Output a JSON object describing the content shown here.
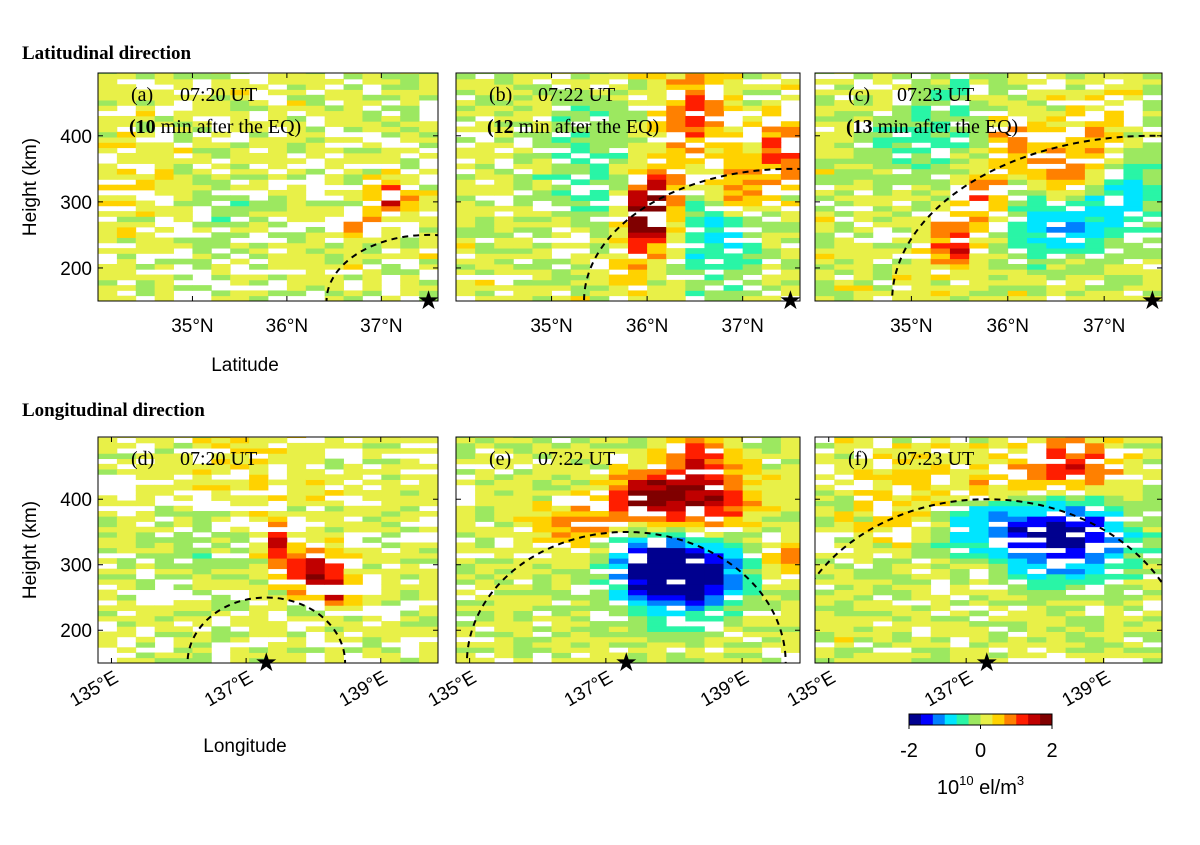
{
  "figure": {
    "section_titles": [
      "Latitudinal direction",
      "Longitudinal direction"
    ],
    "colors": {
      "frame": "#000000",
      "dash": "#000000",
      "missing": "#ffffff",
      "colormap": [
        "#00008f",
        "#0000ff",
        "#0080ff",
        "#00e5ff",
        "#29f5a6",
        "#9ce860",
        "#e8f048",
        "#ffd200",
        "#ff8000",
        "#ff1e00",
        "#c00000",
        "#800000"
      ]
    },
    "colorbar": {
      "vmin": -2,
      "vmax": 2,
      "ticks": [
        "-2",
        "0",
        "2"
      ],
      "label_base": "10",
      "label_exp": "10",
      "label_rest": " el/m",
      "label_unit_exp": "3"
    }
  },
  "chart_data": [
    {
      "id": "a",
      "type": "heatmap",
      "panel_label": "(a)",
      "time": "07:20 UT",
      "note_bold": "10",
      "note_pre": "(",
      "note_post": " min after the EQ)",
      "xlabel": "Latitude",
      "ylabel": "Height (km)",
      "xlim": [
        34.0,
        37.6
      ],
      "ylim": [
        150,
        495
      ],
      "xticks": [
        35,
        36,
        37
      ],
      "xtick_labels": [
        "35°N",
        "36°N",
        "37°N"
      ],
      "yticks": [
        200,
        300,
        400
      ],
      "ytick_labels": [
        "200",
        "300",
        "400"
      ],
      "x_rotate": false,
      "epicenter_x": 37.5,
      "wave_front": {
        "center_x": 37.5,
        "radius_km": 100,
        "x_per_km": 0.0108
      },
      "blobs": [
        {
          "x": 37.1,
          "y": 305,
          "sx": 0.13,
          "sy": 18,
          "a": 1.3
        },
        {
          "x": 36.85,
          "y": 262,
          "sx": 0.12,
          "sy": 12,
          "a": 1.0
        },
        {
          "x": 35.3,
          "y": 300,
          "sx": 0.3,
          "sy": 45,
          "a": -0.35
        },
        {
          "x": 34.5,
          "y": 330,
          "sx": 0.45,
          "sy": 45,
          "a": 0.25
        }
      ],
      "base": 0.1,
      "noise": 0.12,
      "holes": 0.28,
      "seed": 11
    },
    {
      "id": "b",
      "type": "heatmap",
      "panel_label": "(b)",
      "time": "07:22 UT",
      "note_bold": "12",
      "note_pre": "(",
      "note_post": " min after the EQ)",
      "xlabel": "",
      "ylabel": "",
      "xlim": [
        34.0,
        37.6
      ],
      "ylim": [
        150,
        495
      ],
      "xticks": [
        35,
        36,
        37
      ],
      "xtick_labels": [
        "35°N",
        "36°N",
        "37°N"
      ],
      "yticks": [
        200,
        300,
        400
      ],
      "ytick_labels": [
        "",
        "",
        ""
      ],
      "x_rotate": false,
      "epicenter_x": 37.5,
      "wave_front": {
        "center_x": 37.5,
        "radius_km": 200,
        "x_per_km": 0.0108
      },
      "blobs": [
        {
          "x": 35.95,
          "y": 270,
          "sx": 0.14,
          "sy": 42,
          "a": 1.9
        },
        {
          "x": 36.15,
          "y": 300,
          "sx": 0.13,
          "sy": 30,
          "a": 1.5
        },
        {
          "x": 36.5,
          "y": 430,
          "sx": 0.25,
          "sy": 55,
          "a": 1.0
        },
        {
          "x": 36.95,
          "y": 320,
          "sx": 0.18,
          "sy": 30,
          "a": 1.1
        },
        {
          "x": 37.4,
          "y": 380,
          "sx": 0.2,
          "sy": 40,
          "a": 0.9
        },
        {
          "x": 36.75,
          "y": 250,
          "sx": 0.3,
          "sy": 60,
          "a": -0.9
        },
        {
          "x": 35.3,
          "y": 360,
          "sx": 0.4,
          "sy": 70,
          "a": -0.5
        }
      ],
      "base": 0.1,
      "noise": 0.13,
      "holes": 0.2,
      "seed": 23
    },
    {
      "id": "c",
      "type": "heatmap",
      "panel_label": "(c)",
      "time": "07:23 UT",
      "note_bold": "13",
      "note_pre": "(",
      "note_post": " min after the EQ)",
      "xlabel": "",
      "ylabel": "",
      "xlim": [
        34.0,
        37.6
      ],
      "ylim": [
        150,
        495
      ],
      "xticks": [
        35,
        36,
        37
      ],
      "xtick_labels": [
        "35°N",
        "36°N",
        "37°N"
      ],
      "yticks": [
        200,
        300,
        400
      ],
      "ytick_labels": [
        "",
        "",
        ""
      ],
      "x_rotate": false,
      "epicenter_x": 37.5,
      "wave_front": {
        "center_x": 37.5,
        "radius_km": 250,
        "x_per_km": 0.0108
      },
      "blobs": [
        {
          "x": 35.45,
          "y": 240,
          "sx": 0.15,
          "sy": 30,
          "a": 1.4
        },
        {
          "x": 35.75,
          "y": 305,
          "sx": 0.15,
          "sy": 30,
          "a": 1.2
        },
        {
          "x": 36.05,
          "y": 380,
          "sx": 0.2,
          "sy": 30,
          "a": 0.9
        },
        {
          "x": 36.6,
          "y": 335,
          "sx": 0.2,
          "sy": 30,
          "a": 1.0
        },
        {
          "x": 37.0,
          "y": 390,
          "sx": 0.25,
          "sy": 40,
          "a": 0.8
        },
        {
          "x": 36.5,
          "y": 270,
          "sx": 0.45,
          "sy": 40,
          "a": -1.1
        },
        {
          "x": 37.2,
          "y": 330,
          "sx": 0.25,
          "sy": 50,
          "a": -1.0
        },
        {
          "x": 35.2,
          "y": 410,
          "sx": 0.45,
          "sy": 60,
          "a": -0.6
        }
      ],
      "base": 0.1,
      "noise": 0.13,
      "holes": 0.22,
      "seed": 37
    },
    {
      "id": "d",
      "type": "heatmap",
      "panel_label": "(d)",
      "time": "07:20 UT",
      "note_bold": "",
      "note_pre": "",
      "note_post": "",
      "xlabel": "Longitude",
      "ylabel": "Height (km)",
      "xlim": [
        134.8,
        139.85
      ],
      "ylim": [
        150,
        495
      ],
      "xticks": [
        135,
        137,
        139
      ],
      "xtick_labels": [
        "135°E",
        "137°E",
        "139°E"
      ],
      "yticks": [
        200,
        300,
        400
      ],
      "ytick_labels": [
        "200",
        "300",
        "400"
      ],
      "x_rotate": true,
      "epicenter_x": 137.3,
      "wave_front": {
        "center_x": 137.3,
        "radius_km": 100,
        "x_per_km": 0.0117
      },
      "blobs": [
        {
          "x": 137.45,
          "y": 335,
          "sx": 0.15,
          "sy": 25,
          "a": 1.3
        },
        {
          "x": 138.0,
          "y": 290,
          "sx": 0.3,
          "sy": 22,
          "a": 1.5
        },
        {
          "x": 138.35,
          "y": 258,
          "sx": 0.2,
          "sy": 15,
          "a": 1.2
        },
        {
          "x": 136.3,
          "y": 320,
          "sx": 0.7,
          "sy": 50,
          "a": -0.25
        },
        {
          "x": 137.0,
          "y": 440,
          "sx": 0.9,
          "sy": 40,
          "a": 0.25
        }
      ],
      "base": 0.1,
      "noise": 0.11,
      "holes": 0.3,
      "seed": 51
    },
    {
      "id": "e",
      "type": "heatmap",
      "panel_label": "(e)",
      "time": "07:22 UT",
      "note_bold": "",
      "note_pre": "",
      "note_post": "",
      "xlabel": "",
      "ylabel": "",
      "xlim": [
        134.8,
        139.85
      ],
      "ylim": [
        150,
        495
      ],
      "xticks": [
        135,
        137,
        139
      ],
      "xtick_labels": [
        "135°E",
        "137°E",
        "139°E"
      ],
      "yticks": [
        200,
        300,
        400
      ],
      "ytick_labels": [
        "",
        "",
        ""
      ],
      "x_rotate": true,
      "epicenter_x": 137.3,
      "wave_front": {
        "center_x": 137.3,
        "radius_km": 200,
        "x_per_km": 0.0117
      },
      "blobs": [
        {
          "x": 138.2,
          "y": 285,
          "sx": 0.55,
          "sy": 40,
          "a": -2.3
        },
        {
          "x": 137.6,
          "y": 300,
          "sx": 0.45,
          "sy": 35,
          "a": -1.3
        },
        {
          "x": 138.3,
          "y": 400,
          "sx": 0.55,
          "sy": 35,
          "a": 1.8
        },
        {
          "x": 137.5,
          "y": 405,
          "sx": 0.3,
          "sy": 25,
          "a": 1.2
        },
        {
          "x": 136.6,
          "y": 360,
          "sx": 0.5,
          "sy": 25,
          "a": 0.8
        },
        {
          "x": 138.4,
          "y": 470,
          "sx": 0.3,
          "sy": 25,
          "a": 0.9
        },
        {
          "x": 139.6,
          "y": 310,
          "sx": 0.15,
          "sy": 20,
          "a": 1.0
        }
      ],
      "base": 0.05,
      "noise": 0.12,
      "holes": 0.15,
      "seed": 67
    },
    {
      "id": "f",
      "type": "heatmap",
      "panel_label": "(f)",
      "time": "07:23 UT",
      "note_bold": "",
      "note_pre": "",
      "note_post": "",
      "xlabel": "",
      "ylabel": "",
      "xlim": [
        134.8,
        139.85
      ],
      "ylim": [
        150,
        495
      ],
      "xticks": [
        135,
        137,
        139
      ],
      "xtick_labels": [
        "135°E",
        "137°E",
        "139°E"
      ],
      "yticks": [
        200,
        300,
        400
      ],
      "ytick_labels": [
        "",
        "",
        ""
      ],
      "x_rotate": true,
      "epicenter_x": 137.3,
      "wave_front": {
        "center_x": 137.3,
        "radius_km": 250,
        "x_per_km": 0.0117
      },
      "blobs": [
        {
          "x": 138.5,
          "y": 340,
          "sx": 0.65,
          "sy": 45,
          "a": -1.9
        },
        {
          "x": 137.3,
          "y": 355,
          "sx": 0.5,
          "sy": 30,
          "a": -1.0
        },
        {
          "x": 138.5,
          "y": 450,
          "sx": 0.45,
          "sy": 30,
          "a": 1.3
        },
        {
          "x": 137.5,
          "y": 430,
          "sx": 0.4,
          "sy": 20,
          "a": 0.6
        },
        {
          "x": 136.2,
          "y": 400,
          "sx": 0.5,
          "sy": 40,
          "a": 0.4
        }
      ],
      "base": 0.1,
      "noise": 0.12,
      "holes": 0.22,
      "seed": 79
    }
  ]
}
